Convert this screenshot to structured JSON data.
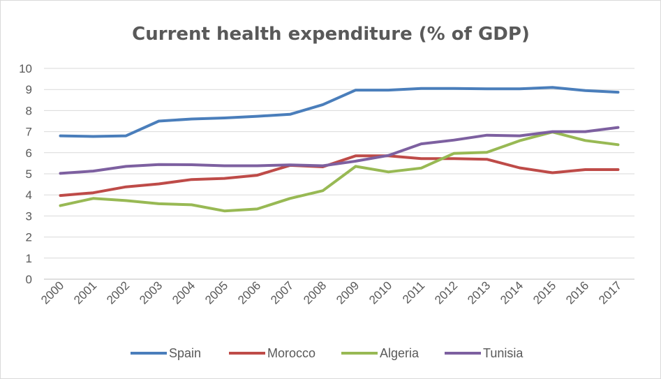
{
  "chart_data": {
    "type": "line",
    "title": "Current health expenditure (% of GDP)",
    "xlabel": "",
    "ylabel": "",
    "ylim": [
      0,
      10
    ],
    "yticks": [
      0,
      1,
      2,
      3,
      4,
      5,
      6,
      7,
      8,
      9,
      10
    ],
    "grid": true,
    "legend_position": "bottom",
    "categories": [
      "2000",
      "2001",
      "2002",
      "2003",
      "2004",
      "2005",
      "2006",
      "2007",
      "2008",
      "2009",
      "2010",
      "2011",
      "2012",
      "2013",
      "2014",
      "2015",
      "2016",
      "2017"
    ],
    "series": [
      {
        "name": "Spain",
        "color": "#4a7ebb",
        "values": [
          6.8,
          6.77,
          6.8,
          7.5,
          7.6,
          7.65,
          7.73,
          7.82,
          8.28,
          8.97,
          8.97,
          9.05,
          9.05,
          9.03,
          9.03,
          9.1,
          8.95,
          8.87
        ]
      },
      {
        "name": "Morocco",
        "color": "#be4b48",
        "values": [
          3.97,
          4.1,
          4.38,
          4.52,
          4.73,
          4.78,
          4.93,
          5.4,
          5.33,
          5.85,
          5.85,
          5.72,
          5.72,
          5.69,
          5.28,
          5.05,
          5.2,
          5.2
        ]
      },
      {
        "name": "Algeria",
        "color": "#98b954",
        "values": [
          3.49,
          3.83,
          3.73,
          3.58,
          3.53,
          3.24,
          3.33,
          3.83,
          4.2,
          5.35,
          5.09,
          5.27,
          5.97,
          6.02,
          6.57,
          6.98,
          6.58,
          6.38
        ]
      },
      {
        "name": "Tunisia",
        "color": "#7d60a0",
        "values": [
          5.02,
          5.13,
          5.35,
          5.44,
          5.43,
          5.38,
          5.38,
          5.42,
          5.38,
          5.6,
          5.87,
          6.42,
          6.6,
          6.83,
          6.8,
          7.0,
          7.0,
          7.2
        ]
      }
    ]
  }
}
